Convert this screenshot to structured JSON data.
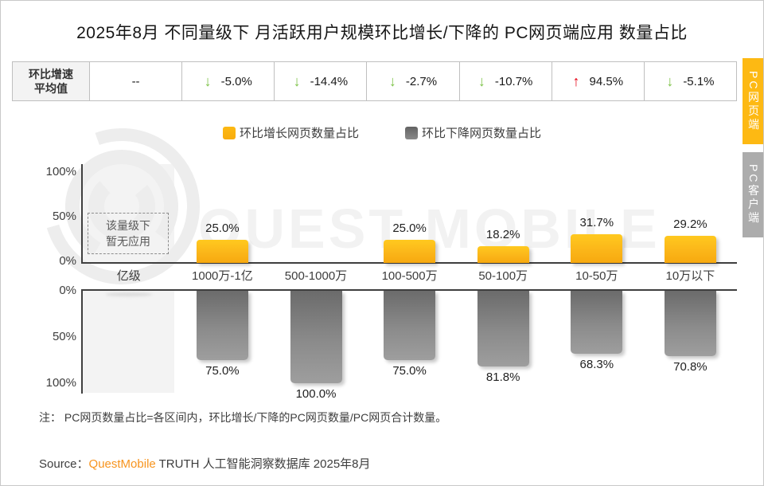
{
  "title": "2025年8月 不同量级下 月活跃用户规模环比增长/下降的 PC网页端应用 数量占比",
  "stats_table": {
    "header_line1": "环比增速",
    "header_line2": "平均值",
    "up_color": "#E60012",
    "down_color": "#7AC143",
    "cells": [
      {
        "direction": "none",
        "value": "--"
      },
      {
        "direction": "down",
        "value": "-5.0%"
      },
      {
        "direction": "down",
        "value": "-14.4%"
      },
      {
        "direction": "down",
        "value": "-2.7%"
      },
      {
        "direction": "down",
        "value": "-10.7%"
      },
      {
        "direction": "up",
        "value": "94.5%"
      },
      {
        "direction": "down",
        "value": "-5.1%"
      }
    ]
  },
  "legend": [
    {
      "label": "环比增长网页数量占比",
      "color": "#FDB913"
    },
    {
      "label": "环比下降网页数量占比",
      "color": "#6E6E6E"
    }
  ],
  "chart_data": {
    "type": "bar",
    "subtype": "mirrored dual chart: growth share above axis, decline share below",
    "categories": [
      "亿级",
      "1000万-1亿",
      "500-1000万",
      "100-500万",
      "50-100万",
      "10-50万",
      "10万以下"
    ],
    "series": [
      {
        "name": "环比增长网页数量占比",
        "color": "#FDB913",
        "values": [
          null,
          25.0,
          0,
          25.0,
          18.2,
          31.7,
          29.2
        ],
        "labels": [
          "",
          "25.0%",
          "",
          "25.0%",
          "18.2%",
          "31.7%",
          "29.2%"
        ]
      },
      {
        "name": "环比下降网页数量占比",
        "color": "#808080",
        "values": [
          null,
          75.0,
          100.0,
          75.0,
          81.8,
          68.3,
          70.8
        ],
        "labels": [
          "",
          "75.0%",
          "100.0%",
          "75.0%",
          "81.8%",
          "68.3%",
          "70.8%"
        ]
      }
    ],
    "ylim": [
      0,
      100
    ],
    "empty_category_annotation": "亿级: 该量级下暂无应用",
    "avg_growth_row": [
      "--",
      "-5.0%",
      "-14.4%",
      "-2.7%",
      "-10.7%",
      "94.5%",
      "-5.1%"
    ]
  },
  "axis": {
    "top_ticks": [
      "100%",
      "50%",
      "0%"
    ],
    "bottom_ticks": [
      "0%",
      "50%",
      "100%"
    ]
  },
  "empty_box": {
    "line1": "该量级下",
    "line2": "暂无应用"
  },
  "side_tabs": [
    {
      "label": "PC网页端",
      "active": true,
      "color": "#FDB913"
    },
    {
      "label": "PC客户端",
      "active": false,
      "color": "#ACACAC"
    }
  ],
  "watermark": "QUEST MOBILE",
  "note": "注： PC网页数量占比=各区间内，环比增长/下降的PC网页数量/PC网页合计数量。",
  "source": {
    "prefix": "Source：",
    "brand": "QuestMobile",
    "suffix": " TRUTH 人工智能洞察数据库 2025年8月",
    "brand_color": "#F7941E"
  }
}
